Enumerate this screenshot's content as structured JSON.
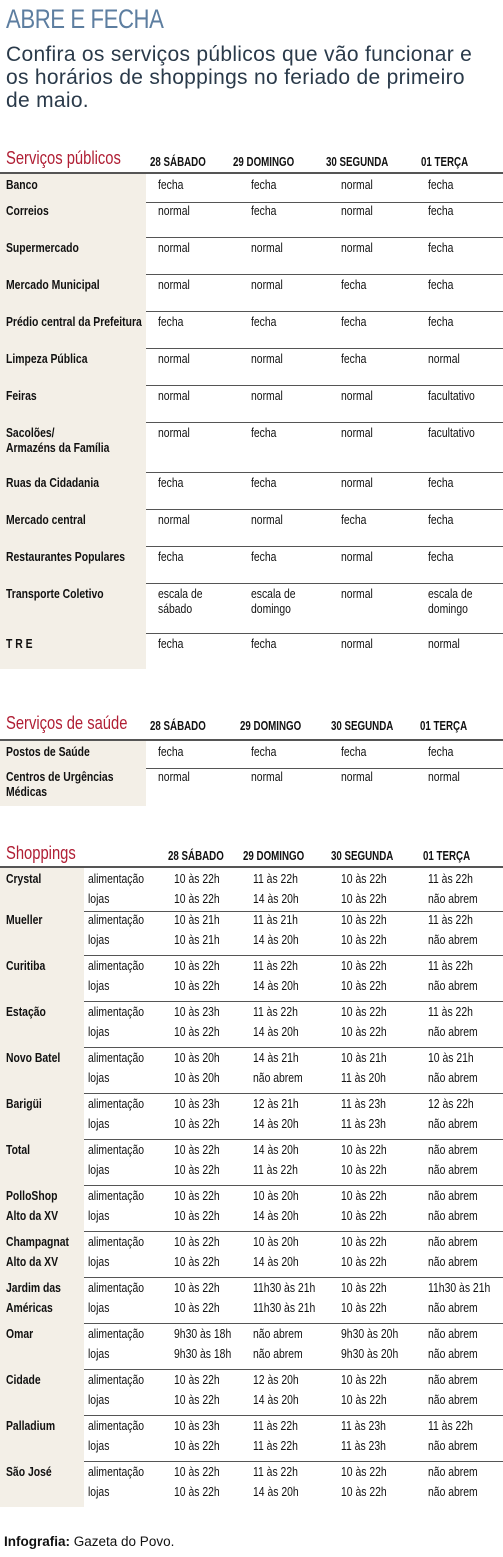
{
  "header": {
    "title": "ABRE E FECHA",
    "subtitle_lines": [
      "Confira os serviços públicos que vão funcionar e",
      "os horários de shoppings no feriado de primeiro",
      "de maio."
    ]
  },
  "servicos_publicos": {
    "title": "Serviços públicos",
    "columns": [
      "28 SÁBADO",
      "29 DOMINGO",
      "30 SEGUNDA",
      "01 TERÇA"
    ],
    "rows": [
      {
        "name": [
          "Banco"
        ],
        "values": [
          [
            "fecha"
          ],
          [
            "fecha"
          ],
          [
            "normal"
          ],
          [
            "fecha"
          ]
        ]
      },
      {
        "name": [
          "Correios"
        ],
        "values": [
          [
            "normal"
          ],
          [
            "fecha"
          ],
          [
            "normal"
          ],
          [
            "fecha"
          ]
        ]
      },
      {
        "name": [
          "Supermercado"
        ],
        "values": [
          [
            "normal"
          ],
          [
            "normal"
          ],
          [
            "normal"
          ],
          [
            "fecha"
          ]
        ]
      },
      {
        "name": [
          "Mercado Municipal"
        ],
        "values": [
          [
            "normal"
          ],
          [
            "normal"
          ],
          [
            "fecha"
          ],
          [
            "fecha"
          ]
        ]
      },
      {
        "name": [
          "Prédio central da Prefeitura"
        ],
        "values": [
          [
            "fecha"
          ],
          [
            "fecha"
          ],
          [
            "fecha"
          ],
          [
            "fecha"
          ]
        ]
      },
      {
        "name": [
          "Limpeza Pública"
        ],
        "values": [
          [
            "normal"
          ],
          [
            "normal"
          ],
          [
            "fecha"
          ],
          [
            "normal"
          ]
        ]
      },
      {
        "name": [
          "Feiras"
        ],
        "values": [
          [
            "normal"
          ],
          [
            "normal"
          ],
          [
            "normal"
          ],
          [
            "facultativo"
          ]
        ]
      },
      {
        "name": [
          "Sacolões/",
          "Armazéns da Família"
        ],
        "values": [
          [
            "normal"
          ],
          [
            "fecha"
          ],
          [
            "normal"
          ],
          [
            "facultativo"
          ]
        ]
      },
      {
        "name": [
          "Ruas da Cidadania"
        ],
        "values": [
          [
            "fecha"
          ],
          [
            "fecha"
          ],
          [
            "normal"
          ],
          [
            "fecha"
          ]
        ]
      },
      {
        "name": [
          "Mercado central"
        ],
        "values": [
          [
            "normal"
          ],
          [
            "normal"
          ],
          [
            "fecha"
          ],
          [
            "fecha"
          ]
        ]
      },
      {
        "name": [
          "Restaurantes Populares"
        ],
        "values": [
          [
            "fecha"
          ],
          [
            "fecha"
          ],
          [
            "normal"
          ],
          [
            "fecha"
          ]
        ]
      },
      {
        "name": [
          "Transporte Coletivo"
        ],
        "values": [
          [
            "escala de",
            "sábado"
          ],
          [
            "escala de",
            "domingo"
          ],
          [
            "normal"
          ],
          [
            "escala de",
            "domingo"
          ]
        ]
      },
      {
        "name": [
          "T R E"
        ],
        "values": [
          [
            "fecha"
          ],
          [
            "fecha"
          ],
          [
            "normal"
          ],
          [
            "normal"
          ]
        ]
      }
    ]
  },
  "servicos_saude": {
    "title": "Serviços de saúde",
    "columns": [
      "28 SÁBADO",
      "29 DOMINGO",
      "30 SEGUNDA",
      "01 TERÇA"
    ],
    "rows": [
      {
        "name": [
          "Postos de Saúde"
        ],
        "values": [
          [
            "fecha"
          ],
          [
            "fecha"
          ],
          [
            "fecha"
          ],
          [
            "fecha"
          ]
        ]
      },
      {
        "name": [
          "Centros de Urgências",
          "Médicas"
        ],
        "values": [
          [
            "normal"
          ],
          [
            "normal"
          ],
          [
            "normal"
          ],
          [
            "normal"
          ]
        ]
      }
    ]
  },
  "shoppings": {
    "title": "Shoppings",
    "columns": [
      "28 SÁBADO",
      "29 DOMINGO",
      "30 SEGUNDA",
      "01 TERÇA"
    ],
    "type_labels": [
      "alimentação",
      "lojas"
    ],
    "rows": [
      {
        "name": [
          "Crystal"
        ],
        "values": [
          [
            "10 às 22h",
            "10 às 22h"
          ],
          [
            "11 às 22h",
            "14 às 20h"
          ],
          [
            "10 às 22h",
            "10 às 22h"
          ],
          [
            "11 às 22h",
            "não abrem"
          ]
        ]
      },
      {
        "name": [
          "Mueller"
        ],
        "values": [
          [
            "10 às 21h",
            "10 às 21h"
          ],
          [
            "11 às 21h",
            "14 às 20h"
          ],
          [
            "10 às 22h",
            "10 às 22h"
          ],
          [
            "11 às 22h",
            "não abrem"
          ]
        ]
      },
      {
        "name": [
          "Curitiba"
        ],
        "values": [
          [
            "10 às 22h",
            "10 às 22h"
          ],
          [
            "11 às 22h",
            "14 às 20h"
          ],
          [
            "10 às 22h",
            "10 às 22h"
          ],
          [
            "11 às 22h",
            "não abrem"
          ]
        ]
      },
      {
        "name": [
          "Estação"
        ],
        "values": [
          [
            "10 às 23h",
            "10 às 22h"
          ],
          [
            "11 às 22h",
            "14 às 20h"
          ],
          [
            "10 às 22h",
            "10 às 22h"
          ],
          [
            "11 às 22h",
            "não abrem"
          ]
        ]
      },
      {
        "name": [
          "Novo Batel"
        ],
        "values": [
          [
            "10 às 20h",
            "10 às 20h"
          ],
          [
            "14 às 21h",
            "não abrem"
          ],
          [
            "10 às 21h",
            "11 às 20h"
          ],
          [
            "10 às 21h",
            "não abrem"
          ]
        ]
      },
      {
        "name": [
          "Barigüi"
        ],
        "values": [
          [
            "10 às 23h",
            "10 às 22h"
          ],
          [
            "12 às 21h",
            "14 às 20h"
          ],
          [
            "11 às 23h",
            "11 às 23h"
          ],
          [
            "12 às 22h",
            "não abrem"
          ]
        ]
      },
      {
        "name": [
          "Total"
        ],
        "values": [
          [
            "10 às 22h",
            "10 às 22h"
          ],
          [
            "14 às 20h",
            "11 às 22h"
          ],
          [
            "10 às 22h",
            "10 às 22h"
          ],
          [
            "não abrem",
            "não abrem"
          ]
        ]
      },
      {
        "name": [
          "PolloShop",
          "Alto da XV"
        ],
        "values": [
          [
            "10 às 22h",
            "10 às 22h"
          ],
          [
            "10 às 20h",
            "14 às 20h"
          ],
          [
            "10 às 22h",
            "10 às 22h"
          ],
          [
            "não abrem",
            "não abrem"
          ]
        ]
      },
      {
        "name": [
          "Champagnat",
          "Alto da XV"
        ],
        "values": [
          [
            "10 às 22h",
            "10 às 22h"
          ],
          [
            "10 às 20h",
            "14 às 20h"
          ],
          [
            "10 às 22h",
            "10 às 22h"
          ],
          [
            "não abrem",
            "não abrem"
          ]
        ]
      },
      {
        "name": [
          "Jardim das",
          "Américas"
        ],
        "values": [
          [
            "10 às 22h",
            "10 às 22h"
          ],
          [
            "11h30 às 21h",
            "11h30 às 21h"
          ],
          [
            "10 às 22h",
            "10 às 22h"
          ],
          [
            "11h30 às 21h",
            "não abrem"
          ]
        ]
      },
      {
        "name": [
          "Omar"
        ],
        "values": [
          [
            "9h30 às 18h",
            "9h30 às 18h"
          ],
          [
            "não abrem",
            "não abrem"
          ],
          [
            "9h30 às 20h",
            "9h30 às 20h"
          ],
          [
            "não abrem",
            "não abrem"
          ]
        ]
      },
      {
        "name": [
          "Cidade"
        ],
        "values": [
          [
            "10 às 22h",
            "10 às 22h"
          ],
          [
            "12 às 20h",
            "14 às 20h"
          ],
          [
            "10 às 22h",
            "10 às 22h"
          ],
          [
            "não abrem",
            "não abrem"
          ]
        ]
      },
      {
        "name": [
          "Palladium"
        ],
        "values": [
          [
            "10 às 23h",
            "10 às 22h"
          ],
          [
            "11 às 22h",
            "11 às 22h"
          ],
          [
            "11 às 23h",
            "11 às 23h"
          ],
          [
            "11 às 22h",
            "não abrem"
          ]
        ]
      },
      {
        "name": [
          "São José"
        ],
        "values": [
          [
            "10 às 22h",
            "10 às 22h"
          ],
          [
            "11 às 22h",
            "14 às 20h"
          ],
          [
            "10 às 22h",
            "10 às 22h"
          ],
          [
            "não abrem",
            "não abrem"
          ]
        ]
      }
    ]
  },
  "footer": {
    "label": "Infografia:",
    "source": "Gazeta do Povo."
  },
  "colors": {
    "title": "#5d7ea0",
    "section_title": "#b01e34",
    "row_shade": "#f3efe7"
  }
}
